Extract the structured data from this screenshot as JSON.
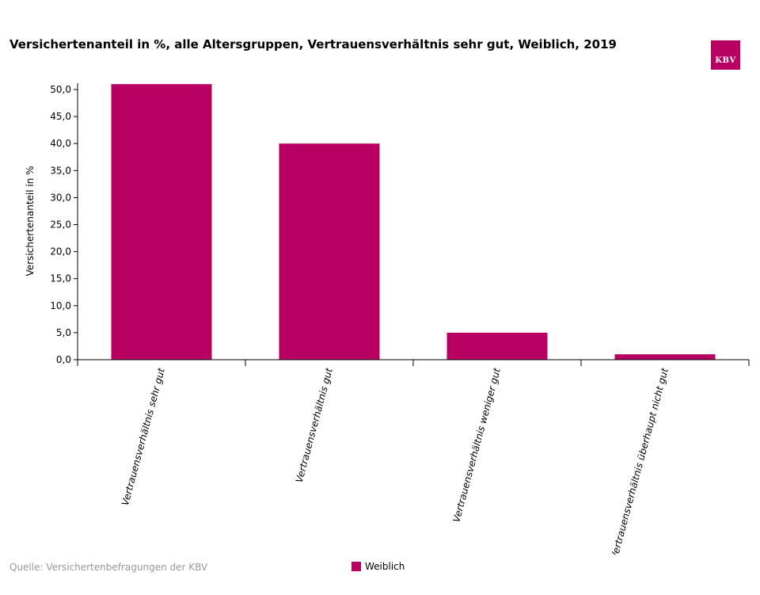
{
  "brand": {
    "logo_text": "KBV",
    "color": "#b80063"
  },
  "footer": {
    "source": "Quelle: Versichertenbefragungen der KBV"
  },
  "chart_data": {
    "type": "bar",
    "title": "Versichertenanteil in %, alle Altersgruppen, Vertrauensverhältnis sehr gut, Weiblich, 2019",
    "ylabel": "Versichertenanteil in %",
    "xlabel": "",
    "categories": [
      "Vertrauensverhältnis sehr gut",
      "Vertrauensverhältnis gut",
      "Vertrauensverhältnis weniger gut",
      "Vertrauensverhältnis überhaupt nicht gut"
    ],
    "series": [
      {
        "name": "Weiblich",
        "color": "#b80063",
        "values": [
          51.0,
          40.0,
          5.0,
          1.0
        ]
      }
    ],
    "ylim": [
      0,
      50
    ],
    "yticks": [
      "0,0",
      "5,0",
      "10,0",
      "15,0",
      "20,0",
      "25,0",
      "30,0",
      "35,0",
      "40,0",
      "45,0",
      "50,0"
    ],
    "grid": false,
    "legend_position": "bottom-center"
  }
}
